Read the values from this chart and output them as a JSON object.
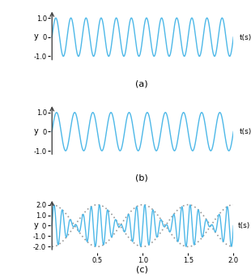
{
  "freq_a": 12,
  "freq_b": 10,
  "t_max_ab": 1.0,
  "t_max_c": 2.0,
  "amp_a": 1.0,
  "amp_b": 1.0,
  "wave_color": "#4db8e8",
  "envelope_color": "#999999",
  "axis_color": "#444444",
  "bg_color": "#ffffff",
  "linewidth": 1.0,
  "envelope_linewidth": 1.2,
  "npoints": 4000,
  "yticks_ab": [
    -1.0,
    0.0,
    1.0
  ],
  "ytick_labels_ab": [
    "-1.0",
    "0",
    "1.0"
  ],
  "yticks_c": [
    -2.0,
    -1.0,
    0.0,
    1.0,
    2.0
  ],
  "ytick_labels_c": [
    "-2.0",
    "-1.0",
    "0",
    "1.0",
    "2.0"
  ],
  "xticks_c": [
    0.5,
    1.0,
    1.5,
    2.0
  ],
  "xtick_labels_c": [
    "0.5",
    "1.0",
    "1.5",
    "2.0"
  ],
  "label_a": "(a)",
  "label_b": "(b)",
  "label_c": "(c)",
  "xlabel": "t(s)",
  "ylabel": "y"
}
